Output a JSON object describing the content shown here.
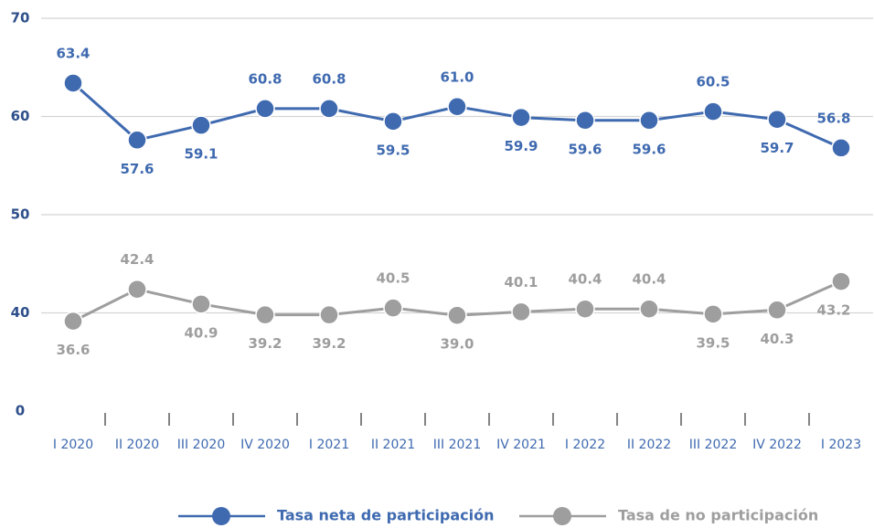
{
  "chart_data": {
    "type": "line",
    "categories": [
      "I 2020",
      "II 2020",
      "III 2020",
      "IV 2020",
      "I 2021",
      "II 2021",
      "III 2021",
      "IV 2021",
      "I 2022",
      "II 2022",
      "III 2022",
      "IV 2022",
      "I 2023"
    ],
    "series": [
      {
        "name": "Tasa neta de participación",
        "color": "#3f6ab0",
        "values": [
          63.4,
          57.6,
          59.1,
          60.8,
          60.8,
          59.5,
          61.0,
          59.9,
          59.6,
          59.6,
          60.5,
          59.7,
          56.8
        ],
        "value_labels": [
          "63.4",
          "57.6",
          "59.1",
          "60.8",
          "60.8",
          "59.5",
          "61.0",
          "59.9",
          "59.6",
          "59.6",
          "60.5",
          "59.7",
          "56.8"
        ]
      },
      {
        "name": "Tasa de no participación",
        "color": "#9e9e9e",
        "values": [
          36.6,
          42.4,
          40.9,
          39.2,
          39.2,
          40.5,
          39.0,
          40.1,
          40.4,
          40.4,
          39.5,
          40.3,
          43.2
        ],
        "value_labels": [
          "36.6",
          "42.4",
          "40.9",
          "39.2",
          "39.2",
          "40.5",
          "39.0",
          "40.1",
          "40.4",
          "40.4",
          "39.5",
          "40.3",
          "43.2"
        ]
      }
    ],
    "ylim": [
      0,
      70
    ],
    "yticks": [
      0,
      40,
      50,
      60,
      70
    ],
    "grid": true,
    "legend": "bottom"
  }
}
